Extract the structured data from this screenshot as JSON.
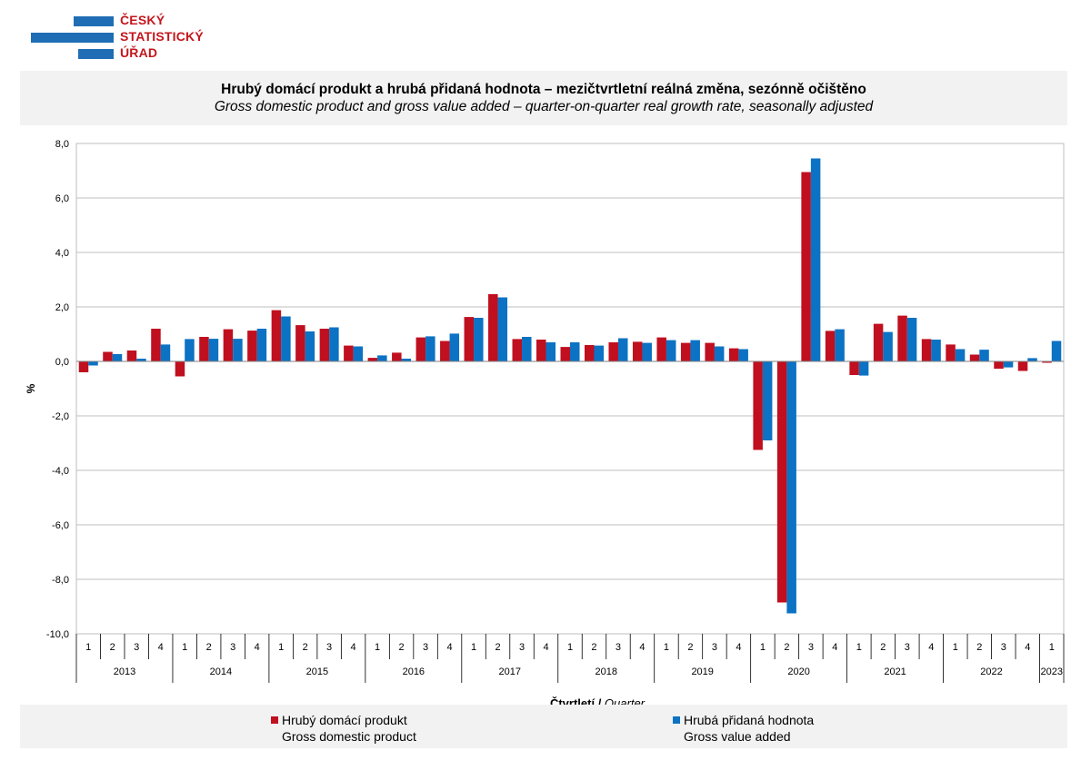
{
  "logo": {
    "lines": [
      "ČESKÝ",
      "STATISTICKÝ",
      "ÚŘAD"
    ],
    "bar_color": "#1f6db4",
    "text_color": "#c4161c"
  },
  "header": {
    "title_cz": "Hrubý domácí produkt a hrubá přidaná hodnota – mezičtvrtletní reálná změna, sezónně očištěno",
    "title_en": "Gross domestic product and gross value added – quarter-on-quarter real growth rate, seasonally adjusted"
  },
  "legend": [
    {
      "label_cz": "Hrubý domácí produkt",
      "label_en": "Gross domestic product",
      "color": "#c00f1f"
    },
    {
      "label_cz": "Hrubá přidaná hodnota",
      "label_en": "Gross value added",
      "color": "#0b72c4"
    }
  ],
  "chart_data": {
    "type": "bar",
    "ylabel": "%",
    "xlabel_cz": "Čtvrtletí /",
    "xlabel_en": "Quarter",
    "ylim": [
      -10,
      8
    ],
    "yticks": [
      "8,0",
      "6,0",
      "4,0",
      "2,0",
      "0,0",
      "-2,0",
      "-4,0",
      "-6,0",
      "-8,0",
      "-10,0"
    ],
    "ytick_values": [
      8,
      6,
      4,
      2,
      0,
      -2,
      -4,
      -6,
      -8,
      -10
    ],
    "grid": true,
    "legend_position": "bottom",
    "categories": [
      "1",
      "2",
      "3",
      "4",
      "1",
      "2",
      "3",
      "4",
      "1",
      "2",
      "3",
      "4",
      "1",
      "2",
      "3",
      "4",
      "1",
      "2",
      "3",
      "4",
      "1",
      "2",
      "3",
      "4",
      "1",
      "2",
      "3",
      "4",
      "1",
      "2",
      "3",
      "4",
      "1",
      "2",
      "3",
      "4",
      "1",
      "2",
      "3",
      "4",
      "1"
    ],
    "years": [
      {
        "label": "2013",
        "quarters": 4
      },
      {
        "label": "2014",
        "quarters": 4
      },
      {
        "label": "2015",
        "quarters": 4
      },
      {
        "label": "2016",
        "quarters": 4
      },
      {
        "label": "2017",
        "quarters": 4
      },
      {
        "label": "2018",
        "quarters": 4
      },
      {
        "label": "2019",
        "quarters": 4
      },
      {
        "label": "2020",
        "quarters": 4
      },
      {
        "label": "2021",
        "quarters": 4
      },
      {
        "label": "2022",
        "quarters": 4
      },
      {
        "label": "2023",
        "quarters": 1
      }
    ],
    "series": [
      {
        "name": "Hrubý domácí produkt",
        "color": "#c00f1f",
        "values": [
          -0.4,
          0.35,
          0.4,
          1.2,
          -0.55,
          0.9,
          1.18,
          1.13,
          1.88,
          1.33,
          1.2,
          0.58,
          0.13,
          0.32,
          0.88,
          0.75,
          1.63,
          2.47,
          0.82,
          0.8,
          0.53,
          0.6,
          0.7,
          0.72,
          0.88,
          0.68,
          0.68,
          0.48,
          -3.25,
          -8.85,
          6.95,
          1.12,
          -0.5,
          1.38,
          1.68,
          0.82,
          0.62,
          0.25,
          -0.27,
          -0.35,
          -0.05
        ]
      },
      {
        "name": "Hrubá přidaná hodnota",
        "color": "#0b72c4",
        "values": [
          -0.15,
          0.27,
          0.1,
          0.62,
          0.82,
          0.83,
          0.83,
          1.2,
          1.65,
          1.1,
          1.25,
          0.55,
          0.22,
          0.1,
          0.92,
          1.02,
          1.6,
          2.35,
          0.9,
          0.7,
          0.7,
          0.58,
          0.85,
          0.68,
          0.78,
          0.78,
          0.55,
          0.45,
          -2.9,
          -9.25,
          7.45,
          1.18,
          -0.52,
          1.08,
          1.6,
          0.8,
          0.45,
          0.43,
          -0.22,
          0.12,
          0.75
        ]
      }
    ]
  }
}
